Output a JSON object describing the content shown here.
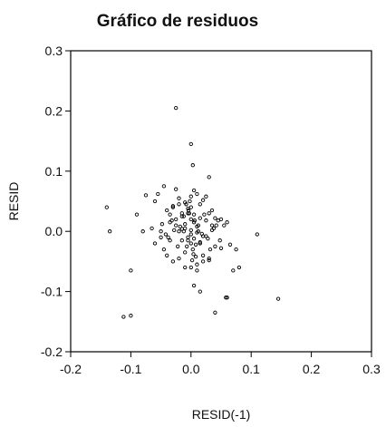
{
  "chart_data": {
    "type": "scatter",
    "title": "Gráfico de residuos",
    "xlabel": "RESID(-1)",
    "ylabel": "RESID",
    "xlim": [
      -0.2,
      0.3
    ],
    "ylim": [
      -0.2,
      0.3
    ],
    "xticks": [
      "-0.2",
      "-0.1",
      "0.0",
      "0.1",
      "0.2",
      "0.3"
    ],
    "yticks": [
      "-0.2",
      "-0.1",
      "0.0",
      "0.1",
      "0.2",
      "0.3"
    ],
    "grid": false,
    "legend": "none",
    "marker_color": "#000000",
    "series": [
      {
        "x": [
          -0.025,
          0.0,
          0.003,
          0.03,
          -0.045,
          0.005,
          -0.14,
          -0.135,
          -0.1,
          -0.09,
          -0.075,
          -0.06,
          -0.055,
          -0.04,
          -0.035,
          -0.03,
          -0.025,
          -0.02,
          -0.015,
          -0.01,
          -0.005,
          0.01,
          0.015,
          0.02,
          0.025,
          0.03,
          0.035,
          0.04,
          0.045,
          0.05,
          0.055,
          0.06,
          0.11,
          -0.1,
          -0.112,
          0.005,
          0.015,
          0.04,
          0.058,
          0.06,
          0.07,
          0.08,
          0.145,
          -0.06,
          -0.05,
          -0.045,
          -0.04,
          -0.03,
          -0.02,
          -0.01,
          0.0,
          0.01,
          0.02,
          0.03,
          0.04,
          -0.035,
          -0.025,
          -0.015,
          -0.005,
          0.005,
          0.015,
          0.025,
          0.035,
          -0.02,
          -0.01,
          0.0,
          0.01,
          0.02,
          -0.015,
          -0.005,
          0.005,
          0.015,
          -0.01,
          0.0,
          0.01,
          -0.012,
          -0.003,
          0.006,
          0.012,
          -0.007,
          0.003,
          0.008,
          -0.018,
          0.018,
          -0.028,
          0.028,
          -0.038,
          0.038,
          -0.048,
          0.048,
          0.0,
          -0.004,
          0.004,
          -0.008,
          0.008,
          -0.002,
          0.002,
          0.0,
          -0.022,
          0.022,
          -0.032,
          0.032,
          -0.042,
          0.042,
          -0.05,
          0.05,
          -0.065,
          0.065,
          -0.08,
          0.075,
          -0.01,
          0.01,
          0.0,
          -0.03,
          0.03,
          -0.02,
          0.02,
          0.012,
          -0.012,
          0.025,
          -0.025,
          0.035,
          -0.035,
          0.005,
          -0.005,
          0.0,
          0.015,
          -0.015
        ],
        "y": [
          0.205,
          0.145,
          0.11,
          0.09,
          0.075,
          0.068,
          0.04,
          0.0,
          -0.065,
          0.028,
          0.06,
          0.05,
          0.062,
          0.035,
          0.028,
          0.042,
          0.07,
          0.055,
          0.03,
          0.048,
          0.038,
          0.062,
          0.045,
          0.052,
          0.058,
          0.03,
          0.035,
          0.022,
          0.018,
          0.02,
          0.01,
          0.015,
          -0.005,
          -0.14,
          -0.142,
          -0.09,
          -0.1,
          -0.135,
          -0.11,
          -0.11,
          -0.065,
          -0.06,
          -0.112,
          -0.02,
          -0.01,
          -0.03,
          -0.04,
          -0.05,
          -0.045,
          -0.035,
          -0.06,
          -0.055,
          -0.05,
          -0.048,
          -0.025,
          0.015,
          0.02,
          0.025,
          0.03,
          0.028,
          0.022,
          0.018,
          0.01,
          0.0,
          0.005,
          -0.005,
          0.008,
          -0.008,
          -0.015,
          -0.01,
          -0.012,
          -0.018,
          0.012,
          0.002,
          -0.002,
          0.025,
          0.03,
          0.018,
          0.01,
          -0.025,
          -0.03,
          -0.022,
          0.008,
          -0.004,
          0.002,
          -0.012,
          -0.01,
          0.005,
          0.012,
          -0.015,
          0.04,
          0.035,
          -0.038,
          0.045,
          -0.042,
          0.05,
          -0.048,
          -0.02,
          -0.025,
          0.028,
          0.018,
          -0.03,
          -0.005,
          0.01,
          0.0,
          -0.028,
          0.005,
          -0.022,
          0.0,
          -0.03,
          -0.06,
          -0.065,
          0.058,
          0.04,
          -0.045,
          0.045,
          -0.04,
          0.0,
          0.0,
          -0.008,
          0.01,
          0.002,
          -0.015,
          0.015,
          -0.015,
          0.02,
          -0.02,
          0.004
        ]
      }
    ]
  }
}
